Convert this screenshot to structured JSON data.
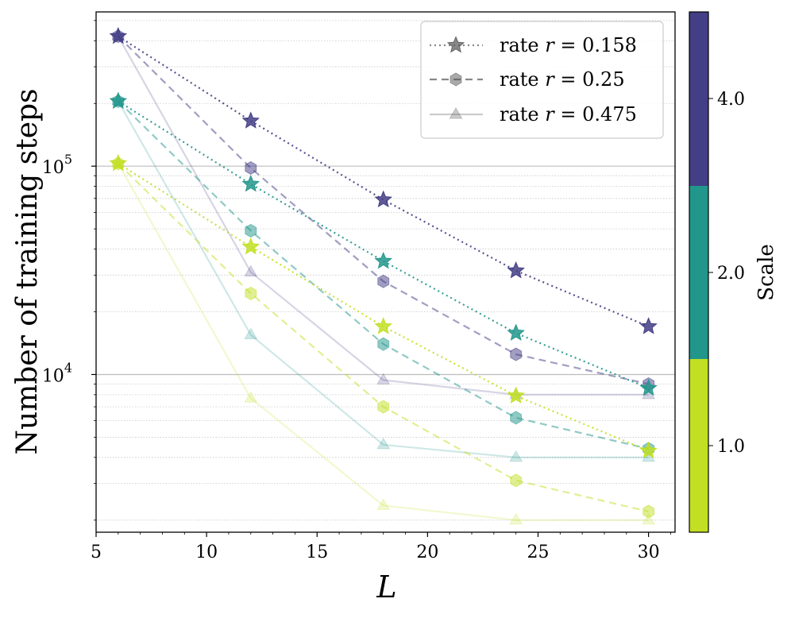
{
  "chart_data": {
    "type": "line",
    "title": "",
    "xlabel": "L",
    "ylabel": "Number of training steps",
    "yscale": "log",
    "xlim": [
      5,
      31.2
    ],
    "ylim": [
      1750,
      550000
    ],
    "x": [
      6,
      12,
      18,
      24,
      30
    ],
    "x_ticks": [
      "5",
      "10",
      "15",
      "20",
      "25",
      "30"
    ],
    "y_ticks": [
      {
        "label_base": "10",
        "label_exp": "4",
        "value": 10000
      },
      {
        "label_base": "10",
        "label_exp": "5",
        "value": 100000
      }
    ],
    "grid": true,
    "legend": {
      "placement": "top-right",
      "entries": [
        {
          "label": "rate r = 0.158",
          "text": "rate",
          "var": "r",
          "eq": "= 0.158",
          "marker": "star",
          "linestyle": "dotted"
        },
        {
          "label": "rate r = 0.25",
          "text": "rate",
          "var": "r",
          "eq": "= 0.25",
          "marker": "hexagon",
          "linestyle": "dashed"
        },
        {
          "label": "rate r = 0.475",
          "text": "rate",
          "var": "r",
          "eq": "= 0.475",
          "marker": "triangle",
          "linestyle": "solid"
        }
      ]
    },
    "colorbar": {
      "label": "Scale",
      "ticks": [
        "1.0",
        "2.0",
        "4.0"
      ],
      "colors": [
        "#c2df23",
        "#22968b",
        "#433e85"
      ]
    },
    "series": [
      {
        "name": "rate r = 0.158, scale 4.0",
        "rate": 0.158,
        "scale": "4.0",
        "color": "#433e85",
        "marker": "star",
        "linestyle": "dotted",
        "values": [
          420000,
          165000,
          69000,
          31500,
          17000
        ]
      },
      {
        "name": "rate r = 0.25, scale 4.0",
        "rate": 0.25,
        "scale": "4.0",
        "color": "#433e85",
        "marker": "hexagon",
        "linestyle": "dashed",
        "values": [
          420000,
          98000,
          28000,
          12500,
          9000
        ]
      },
      {
        "name": "rate r = 0.475, scale 4.0",
        "rate": 0.475,
        "scale": "4.0",
        "color": "#433e85",
        "marker": "triangle",
        "linestyle": "solid",
        "values": [
          420000,
          31000,
          9400,
          8000,
          8000
        ]
      },
      {
        "name": "rate r = 0.158, scale 2.0",
        "rate": 0.158,
        "scale": "2.0",
        "color": "#22968b",
        "marker": "star",
        "linestyle": "dotted",
        "values": [
          205000,
          82000,
          35000,
          15800,
          8600
        ]
      },
      {
        "name": "rate r = 0.25, scale 2.0",
        "rate": 0.25,
        "scale": "2.0",
        "color": "#22968b",
        "marker": "hexagon",
        "linestyle": "dashed",
        "values": [
          205000,
          49000,
          14000,
          6200,
          4400
        ]
      },
      {
        "name": "rate r = 0.475, scale 2.0",
        "rate": 0.475,
        "scale": "2.0",
        "color": "#22968b",
        "marker": "triangle",
        "linestyle": "solid",
        "values": [
          205000,
          15500,
          4600,
          4000,
          4000
        ]
      },
      {
        "name": "rate r = 0.158, scale 1.0",
        "rate": 0.158,
        "scale": "1.0",
        "color": "#c2df23",
        "marker": "star",
        "linestyle": "dotted",
        "values": [
          103000,
          41000,
          17000,
          7900,
          4300
        ]
      },
      {
        "name": "rate r = 0.25, scale 1.0",
        "rate": 0.25,
        "scale": "1.0",
        "color": "#c2df23",
        "marker": "hexagon",
        "linestyle": "dashed",
        "values": [
          103000,
          24500,
          7000,
          3100,
          2200
        ]
      },
      {
        "name": "rate r = 0.475, scale 1.0",
        "rate": 0.475,
        "scale": "1.0",
        "color": "#c2df23",
        "marker": "triangle",
        "linestyle": "solid",
        "values": [
          103000,
          7700,
          2350,
          2000,
          2000
        ]
      }
    ]
  }
}
